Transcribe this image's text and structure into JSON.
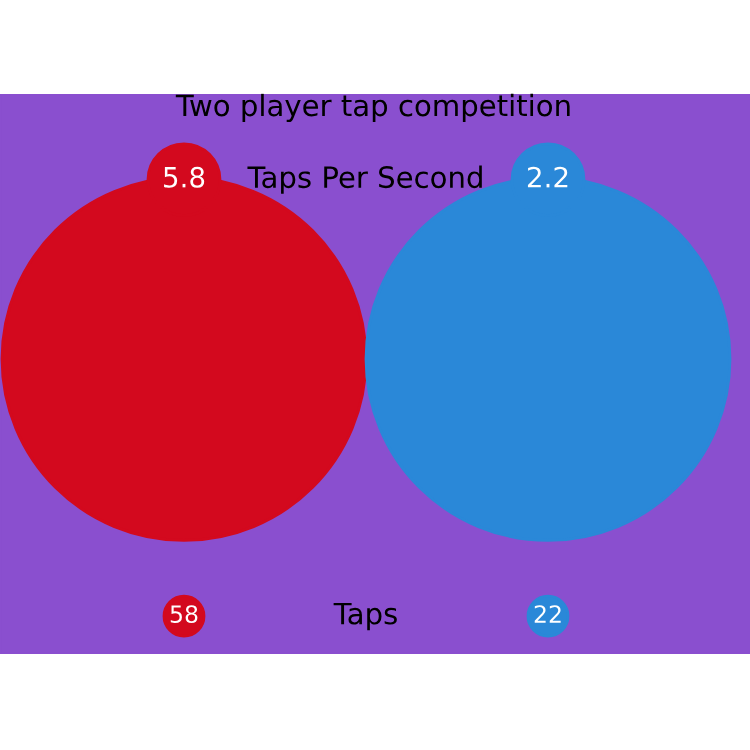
{
  "chart_data": {
    "type": "other",
    "title": "Two player tap competition",
    "categories": [
      "Taps Per Second",
      "Taps"
    ],
    "data_labels": true,
    "series": [
      {
        "color": "#d3091e",
        "values": [
          5.8,
          58
        ]
      },
      {
        "color": "#2a88d8",
        "values": [
          2.2,
          22
        ]
      }
    ]
  }
}
